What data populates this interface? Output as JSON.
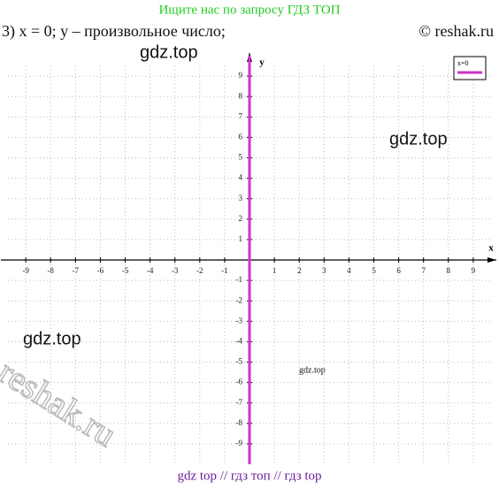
{
  "header": {
    "banner": "Ищите нас по запросу ГДЗ ТОП",
    "task": "3) x = 0;   y – произвольное число;",
    "copyright": "© reshak.ru"
  },
  "watermarks": [
    "gdz.top",
    "gdz.top",
    "gdz.top",
    "gdz.top",
    "reshak.ru"
  ],
  "footer": "gdz top  //  гдз топ  //  гдз top",
  "chart_data": {
    "type": "line",
    "x_label": "x",
    "y_label": "y",
    "xlim": [
      -10,
      10
    ],
    "ylim": [
      -10,
      10
    ],
    "xticks": [
      -9,
      -8,
      -7,
      -6,
      -5,
      -4,
      -3,
      -2,
      -1,
      1,
      2,
      3,
      4,
      5,
      6,
      7,
      8,
      9
    ],
    "yticks": [
      -9,
      -8,
      -7,
      -6,
      -5,
      -4,
      -3,
      -2,
      -1,
      1,
      2,
      3,
      4,
      5,
      6,
      7,
      8,
      9
    ],
    "grid": true,
    "legend": "upper right",
    "series": [
      {
        "name": "x=0",
        "color": "#cc33cc",
        "x": [
          0,
          0
        ],
        "values": [
          -10,
          10
        ]
      }
    ]
  }
}
